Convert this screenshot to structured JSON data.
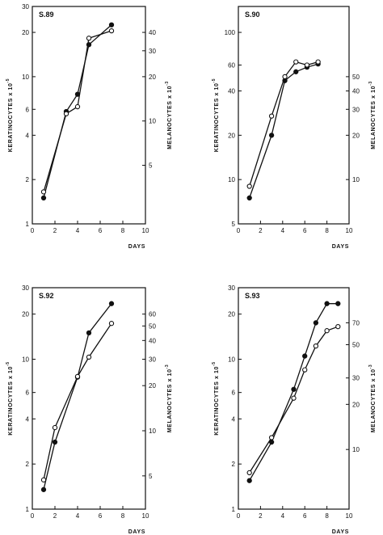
{
  "chart_data": [
    {
      "type": "line",
      "panel_label": "S.89",
      "xlabel": "DAYS",
      "ylabel_left": "KERATINOCYTES x 10",
      "ylabel_left_exp": "-5",
      "ylabel_right": "MELANOCYTES x 10",
      "ylabel_right_exp": "-3",
      "x_ticks": [
        "0",
        "2",
        "4",
        "6",
        "8",
        "10"
      ],
      "xlim": [
        0,
        10
      ],
      "left_scale": "log",
      "left_ylim": [
        1,
        30
      ],
      "left_ticks": [
        "1",
        "2",
        "4",
        "6",
        "10",
        "20",
        "30"
      ],
      "right_ylim": [
        2,
        60
      ],
      "right_ticks": [
        "5",
        "10",
        "20",
        "30",
        "40"
      ],
      "series": [
        {
          "marker": "filled",
          "axis": "left",
          "x": [
            1,
            3,
            4,
            5,
            7
          ],
          "y": [
            1.5,
            5.8,
            7.6,
            16.5,
            22.5
          ]
        },
        {
          "marker": "open",
          "axis": "right",
          "x": [
            1,
            3,
            4,
            5,
            7
          ],
          "y": [
            3.3,
            11.2,
            12.5,
            36.5,
            41
          ]
        }
      ]
    },
    {
      "type": "line",
      "panel_label": "S.90",
      "xlabel": "DAYS",
      "ylabel_left": "KERATINOCYTES x 10",
      "ylabel_left_exp": "-5",
      "ylabel_right": "MELANOCYTES x 10",
      "ylabel_right_exp": "-3",
      "x_ticks": [
        "0",
        "2",
        "4",
        "6",
        "8",
        "10"
      ],
      "xlim": [
        0,
        10
      ],
      "left_scale": "log",
      "left_ylim": [
        5,
        150
      ],
      "left_ticks": [
        "5",
        "10",
        "20",
        "40",
        "60",
        "100"
      ],
      "right_ylim": [
        5,
        150
      ],
      "right_ticks": [
        "10",
        "20",
        "30",
        "40",
        "50"
      ],
      "series": [
        {
          "marker": "filled",
          "axis": "left",
          "x": [
            1,
            3,
            4.2,
            5.2,
            6.2,
            7.2
          ],
          "y": [
            7.5,
            20,
            47,
            54,
            58,
            61
          ]
        },
        {
          "marker": "open",
          "axis": "right",
          "x": [
            1,
            3,
            4.2,
            5.2,
            6.2,
            7.2
          ],
          "y": [
            9,
            27,
            50,
            63,
            60,
            63
          ]
        }
      ]
    },
    {
      "type": "line",
      "panel_label": "S.92",
      "xlabel": "DAYS",
      "ylabel_left": "KERATINOCYTES x 10",
      "ylabel_left_exp": "-5",
      "ylabel_right": "MELANOCYTES x 10",
      "ylabel_right_exp": "-3",
      "x_ticks": [
        "0",
        "2",
        "4",
        "6",
        "8",
        "10"
      ],
      "xlim": [
        0,
        10
      ],
      "left_scale": "log",
      "left_ylim": [
        1,
        30
      ],
      "left_ticks": [
        "1",
        "2",
        "4",
        "6",
        "10",
        "20",
        "30"
      ],
      "right_ylim": [
        3,
        90
      ],
      "right_ticks": [
        "5",
        "10",
        "20",
        "30",
        "40",
        "50",
        "60"
      ],
      "series": [
        {
          "marker": "filled",
          "axis": "left",
          "x": [
            1,
            2,
            4,
            5,
            7
          ],
          "y": [
            1.35,
            2.8,
            7.6,
            15,
            23.5
          ]
        },
        {
          "marker": "open",
          "axis": "right",
          "x": [
            1,
            2,
            4,
            5,
            7
          ],
          "y": [
            4.7,
            10.5,
            23,
            31,
            52
          ]
        }
      ]
    },
    {
      "type": "line",
      "panel_label": "S.93",
      "xlabel": "DAYS",
      "ylabel_left": "KERATINOCYTES x 10",
      "ylabel_left_exp": "-5",
      "ylabel_right": "MELANOCYTES x 10",
      "ylabel_right_exp": "-3",
      "x_ticks": [
        "0",
        "2",
        "4",
        "6",
        "8",
        "10"
      ],
      "xlim": [
        0,
        10
      ],
      "left_scale": "log",
      "left_ylim": [
        1,
        30
      ],
      "left_ticks": [
        "1",
        "2",
        "4",
        "6",
        "10",
        "20",
        "30"
      ],
      "right_ylim": [
        4,
        120
      ],
      "right_ticks": [
        "10",
        "20",
        "30",
        "50",
        "70"
      ],
      "series": [
        {
          "marker": "filled",
          "axis": "left",
          "x": [
            1,
            3,
            5,
            6,
            7,
            8,
            9
          ],
          "y": [
            1.55,
            2.8,
            6.3,
            10.5,
            17.5,
            23.5,
            23.5
          ]
        },
        {
          "marker": "open",
          "axis": "right",
          "x": [
            1,
            3,
            5,
            6,
            7,
            8,
            9
          ],
          "y": [
            7,
            12,
            22,
            34,
            49,
            62,
            66
          ]
        }
      ]
    }
  ]
}
